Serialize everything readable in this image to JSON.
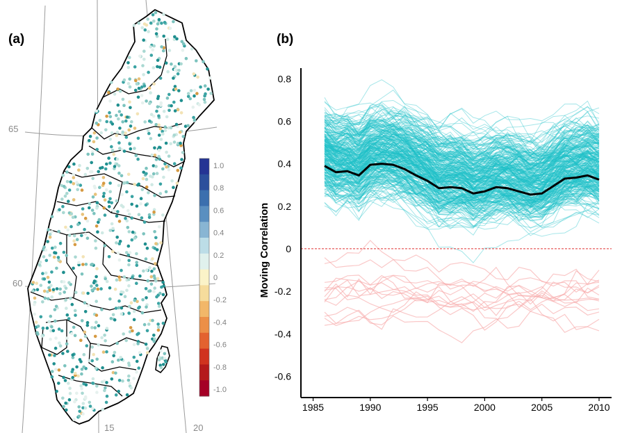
{
  "map_panel": {
    "label": "(a)",
    "latitude_labels": [
      "65",
      "60"
    ],
    "longitude_labels": [
      "15",
      "20"
    ],
    "colorbar": {
      "tick_labels": [
        "1.0",
        "0.8",
        "0.6",
        "0.4",
        "0.2",
        "0",
        "-0.2",
        "-0.4",
        "-0.6",
        "-0.8",
        "-1.0"
      ],
      "colors": [
        "#253494",
        "#2c4f9c",
        "#3b6fae",
        "#5a8fc0",
        "#88b5d3",
        "#bcdde7",
        "#e0f1ed",
        "#fbf3c8",
        "#f6dc9c",
        "#f2b769",
        "#ec8f47",
        "#e3622f",
        "#d0331f",
        "#b41a1b",
        "#a50026"
      ],
      "range": [
        -1.0,
        1.0
      ]
    },
    "dot_colors": [
      "#1f8f8f",
      "#3aa3a3",
      "#7cc3be",
      "#a9d8d2",
      "#cfe9e4",
      "#e6f1ee",
      "#f3e3b5",
      "#e8c27a",
      "#d69a42"
    ]
  },
  "chart_data": {
    "type": "line",
    "label": "(b)",
    "ylabel": "Moving Correlation",
    "xlabel": "",
    "xlim": [
      1985,
      2011
    ],
    "ylim": [
      -0.7,
      0.85
    ],
    "x_ticks": [
      "1985",
      "1990",
      "1995",
      "2000",
      "2005",
      "2010"
    ],
    "y_ticks": [
      "0.8",
      "0.6",
      "0.4",
      "0.2",
      "0",
      "-0.2",
      "-0.4",
      "-0.6"
    ],
    "zero_line": true,
    "series_colors": {
      "mean": "#000000",
      "positive": "#1ec0c8",
      "negative": "#f7aaaa",
      "zero_line": "#e03030"
    },
    "mean_series": {
      "x": [
        1986,
        1987,
        1988,
        1989,
        1990,
        1991,
        1992,
        1993,
        1994,
        1995,
        1996,
        1997,
        1998,
        1999,
        2000,
        2001,
        2002,
        2003,
        2004,
        2005,
        2006,
        2007,
        2008,
        2009,
        2010
      ],
      "values": [
        0.39,
        0.36,
        0.365,
        0.345,
        0.395,
        0.4,
        0.395,
        0.375,
        0.345,
        0.32,
        0.285,
        0.29,
        0.285,
        0.26,
        0.27,
        0.29,
        0.285,
        0.27,
        0.255,
        0.26,
        0.295,
        0.33,
        0.335,
        0.345,
        0.325
      ]
    },
    "station_series": {
      "count_positive": 300,
      "count_negative": 14
    }
  }
}
